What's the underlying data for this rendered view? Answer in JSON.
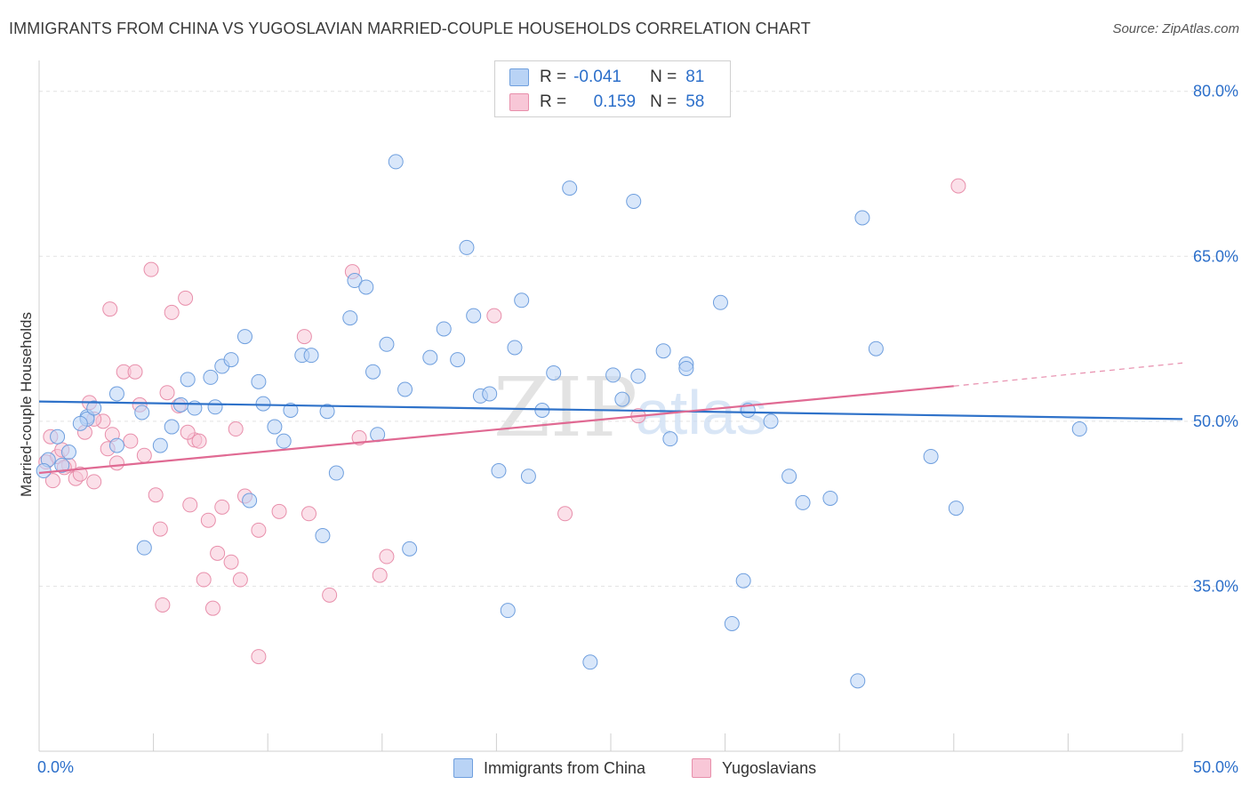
{
  "title": "IMMIGRANTS FROM CHINA VS YUGOSLAVIAN MARRIED-COUPLE HOUSEHOLDS CORRELATION CHART",
  "source": "Source: ZipAtlas.com",
  "watermark": {
    "zip": "ZIP",
    "atlas": "atlas"
  },
  "legend_stats": [
    {
      "r_label": "R =",
      "r_value": "-0.041",
      "n_label": "N =",
      "n_value": "81",
      "color": "#6f9fde"
    },
    {
      "r_label": "R =",
      "r_value": "0.159",
      "n_label": "N =",
      "n_value": "58",
      "color": "#e88fab"
    }
  ],
  "legend_series": [
    {
      "name": "Immigrants from China"
    },
    {
      "name": "Yugoslavians"
    }
  ],
  "colors": {
    "blue_fill": "#b9d3f5",
    "blue_stroke": "#6f9fde",
    "blue_line": "#2f72c9",
    "pink_fill": "#f8c7d7",
    "pink_stroke": "#e88fab",
    "pink_line": "#e06a93",
    "tick_label": "#2c6fca"
  },
  "chart_data": {
    "type": "scatter",
    "title": "IMMIGRANTS FROM CHINA VS YUGOSLAVIAN MARRIED-COUPLE HOUSEHOLDS CORRELATION CHART",
    "xlabel": "",
    "ylabel": "Married-couple Households",
    "xlim": [
      0,
      50
    ],
    "ylim": [
      20,
      82
    ],
    "x_tick_labels": [
      {
        "value": 0,
        "label": "0.0%"
      },
      {
        "value": 50,
        "label": "50.0%"
      }
    ],
    "x_minor_ticks": [
      5,
      10,
      15,
      20,
      25,
      30,
      35,
      40,
      45,
      50
    ],
    "y_ticks": [
      {
        "value": 80,
        "label": "80.0%"
      },
      {
        "value": 65,
        "label": "65.0%"
      },
      {
        "value": 50,
        "label": "50.0%"
      },
      {
        "value": 35,
        "label": "35.0%"
      }
    ],
    "grid": true,
    "legend_position": "top-center",
    "series": [
      {
        "name": "Immigrants from China",
        "color": "#6f9fde",
        "trend": {
          "x": [
            0,
            50
          ],
          "y": [
            51.8,
            50.2
          ]
        },
        "points": [
          [
            0.4,
            46.5
          ],
          [
            0.8,
            48.6
          ],
          [
            1.3,
            47.2
          ],
          [
            2.1,
            50.4
          ],
          [
            2.1,
            50.2
          ],
          [
            2.4,
            51.2
          ],
          [
            3.4,
            52.5
          ],
          [
            3.4,
            47.8
          ],
          [
            4.5,
            50.8
          ],
          [
            5.3,
            47.8
          ],
          [
            4.6,
            38.5
          ],
          [
            5.8,
            49.5
          ],
          [
            6.2,
            51.5
          ],
          [
            6.5,
            53.8
          ],
          [
            6.8,
            51.2
          ],
          [
            7.5,
            54.0
          ],
          [
            7.7,
            51.3
          ],
          [
            8.0,
            55.0
          ],
          [
            8.4,
            55.6
          ],
          [
            9.0,
            57.7
          ],
          [
            9.6,
            53.6
          ],
          [
            9.8,
            51.6
          ],
          [
            9.2,
            42.8
          ],
          [
            10.3,
            49.5
          ],
          [
            10.7,
            48.2
          ],
          [
            11.0,
            51.0
          ],
          [
            11.5,
            56.0
          ],
          [
            11.9,
            56.0
          ],
          [
            12.6,
            50.9
          ],
          [
            12.4,
            39.6
          ],
          [
            13.0,
            45.3
          ],
          [
            13.6,
            59.4
          ],
          [
            13.8,
            62.8
          ],
          [
            14.3,
            62.2
          ],
          [
            14.6,
            54.5
          ],
          [
            14.8,
            48.8
          ],
          [
            15.2,
            57.0
          ],
          [
            15.6,
            73.6
          ],
          [
            16.0,
            52.9
          ],
          [
            16.2,
            38.4
          ],
          [
            17.1,
            55.8
          ],
          [
            17.7,
            58.4
          ],
          [
            18.3,
            55.6
          ],
          [
            18.7,
            65.8
          ],
          [
            19.0,
            59.6
          ],
          [
            19.3,
            52.3
          ],
          [
            19.7,
            52.5
          ],
          [
            20.1,
            45.5
          ],
          [
            20.5,
            32.8
          ],
          [
            20.8,
            56.7
          ],
          [
            21.1,
            61.0
          ],
          [
            21.4,
            45.0
          ],
          [
            22.0,
            51.0
          ],
          [
            22.5,
            54.4
          ],
          [
            23.2,
            71.2
          ],
          [
            24.1,
            28.1
          ],
          [
            25.1,
            54.2
          ],
          [
            25.5,
            52.0
          ],
          [
            26.0,
            70.0
          ],
          [
            26.2,
            54.1
          ],
          [
            27.3,
            56.4
          ],
          [
            27.6,
            48.4
          ],
          [
            28.3,
            55.2
          ],
          [
            28.3,
            54.8
          ],
          [
            29.8,
            60.8
          ],
          [
            30.3,
            31.6
          ],
          [
            30.8,
            35.5
          ],
          [
            31.0,
            51.0
          ],
          [
            32.0,
            50.0
          ],
          [
            32.8,
            45.0
          ],
          [
            33.4,
            42.6
          ],
          [
            34.6,
            43.0
          ],
          [
            35.8,
            26.4
          ],
          [
            36.0,
            68.5
          ],
          [
            36.6,
            56.6
          ],
          [
            39.0,
            46.8
          ],
          [
            40.1,
            42.1
          ],
          [
            45.5,
            49.3
          ],
          [
            0.2,
            45.5
          ],
          [
            1.0,
            46.0
          ],
          [
            1.8,
            49.8
          ]
        ]
      },
      {
        "name": "Yugoslavians",
        "color": "#e88fab",
        "trend": {
          "x": [
            0,
            40
          ],
          "y": [
            45.3,
            53.2
          ]
        },
        "trend_dashed": {
          "x": [
            40,
            50
          ],
          "y": [
            53.2,
            55.3
          ]
        },
        "points": [
          [
            0.3,
            46.3
          ],
          [
            0.5,
            48.6
          ],
          [
            0.8,
            46.8
          ],
          [
            1.0,
            47.4
          ],
          [
            1.3,
            46.0
          ],
          [
            1.6,
            44.8
          ],
          [
            1.8,
            45.2
          ],
          [
            2.0,
            49.0
          ],
          [
            2.2,
            51.7
          ],
          [
            2.4,
            44.5
          ],
          [
            2.8,
            50.0
          ],
          [
            3.0,
            47.5
          ],
          [
            3.2,
            48.8
          ],
          [
            3.4,
            46.2
          ],
          [
            3.7,
            54.5
          ],
          [
            4.0,
            48.2
          ],
          [
            4.2,
            54.5
          ],
          [
            4.4,
            51.5
          ],
          [
            4.6,
            46.9
          ],
          [
            5.1,
            43.3
          ],
          [
            5.3,
            40.2
          ],
          [
            4.9,
            63.8
          ],
          [
            5.6,
            52.6
          ],
          [
            5.8,
            59.9
          ],
          [
            6.1,
            51.4
          ],
          [
            6.4,
            61.2
          ],
          [
            6.6,
            42.4
          ],
          [
            6.8,
            48.3
          ],
          [
            7.0,
            48.2
          ],
          [
            7.2,
            35.6
          ],
          [
            7.4,
            41.0
          ],
          [
            7.6,
            33.0
          ],
          [
            7.8,
            38.0
          ],
          [
            8.0,
            42.2
          ],
          [
            8.4,
            37.2
          ],
          [
            8.6,
            49.3
          ],
          [
            8.8,
            35.6
          ],
          [
            9.0,
            43.2
          ],
          [
            9.6,
            40.1
          ],
          [
            9.6,
            28.6
          ],
          [
            10.5,
            41.8
          ],
          [
            11.6,
            57.7
          ],
          [
            11.8,
            41.6
          ],
          [
            12.7,
            34.2
          ],
          [
            13.7,
            63.6
          ],
          [
            14.0,
            48.5
          ],
          [
            15.2,
            37.7
          ],
          [
            14.9,
            36.0
          ],
          [
            19.9,
            59.6
          ],
          [
            23.0,
            41.6
          ],
          [
            26.2,
            50.5
          ],
          [
            40.2,
            71.4
          ],
          [
            3.1,
            60.2
          ],
          [
            5.4,
            33.3
          ],
          [
            2.4,
            50.2
          ],
          [
            1.1,
            45.8
          ],
          [
            0.6,
            44.6
          ],
          [
            6.5,
            49.0
          ]
        ]
      }
    ]
  }
}
